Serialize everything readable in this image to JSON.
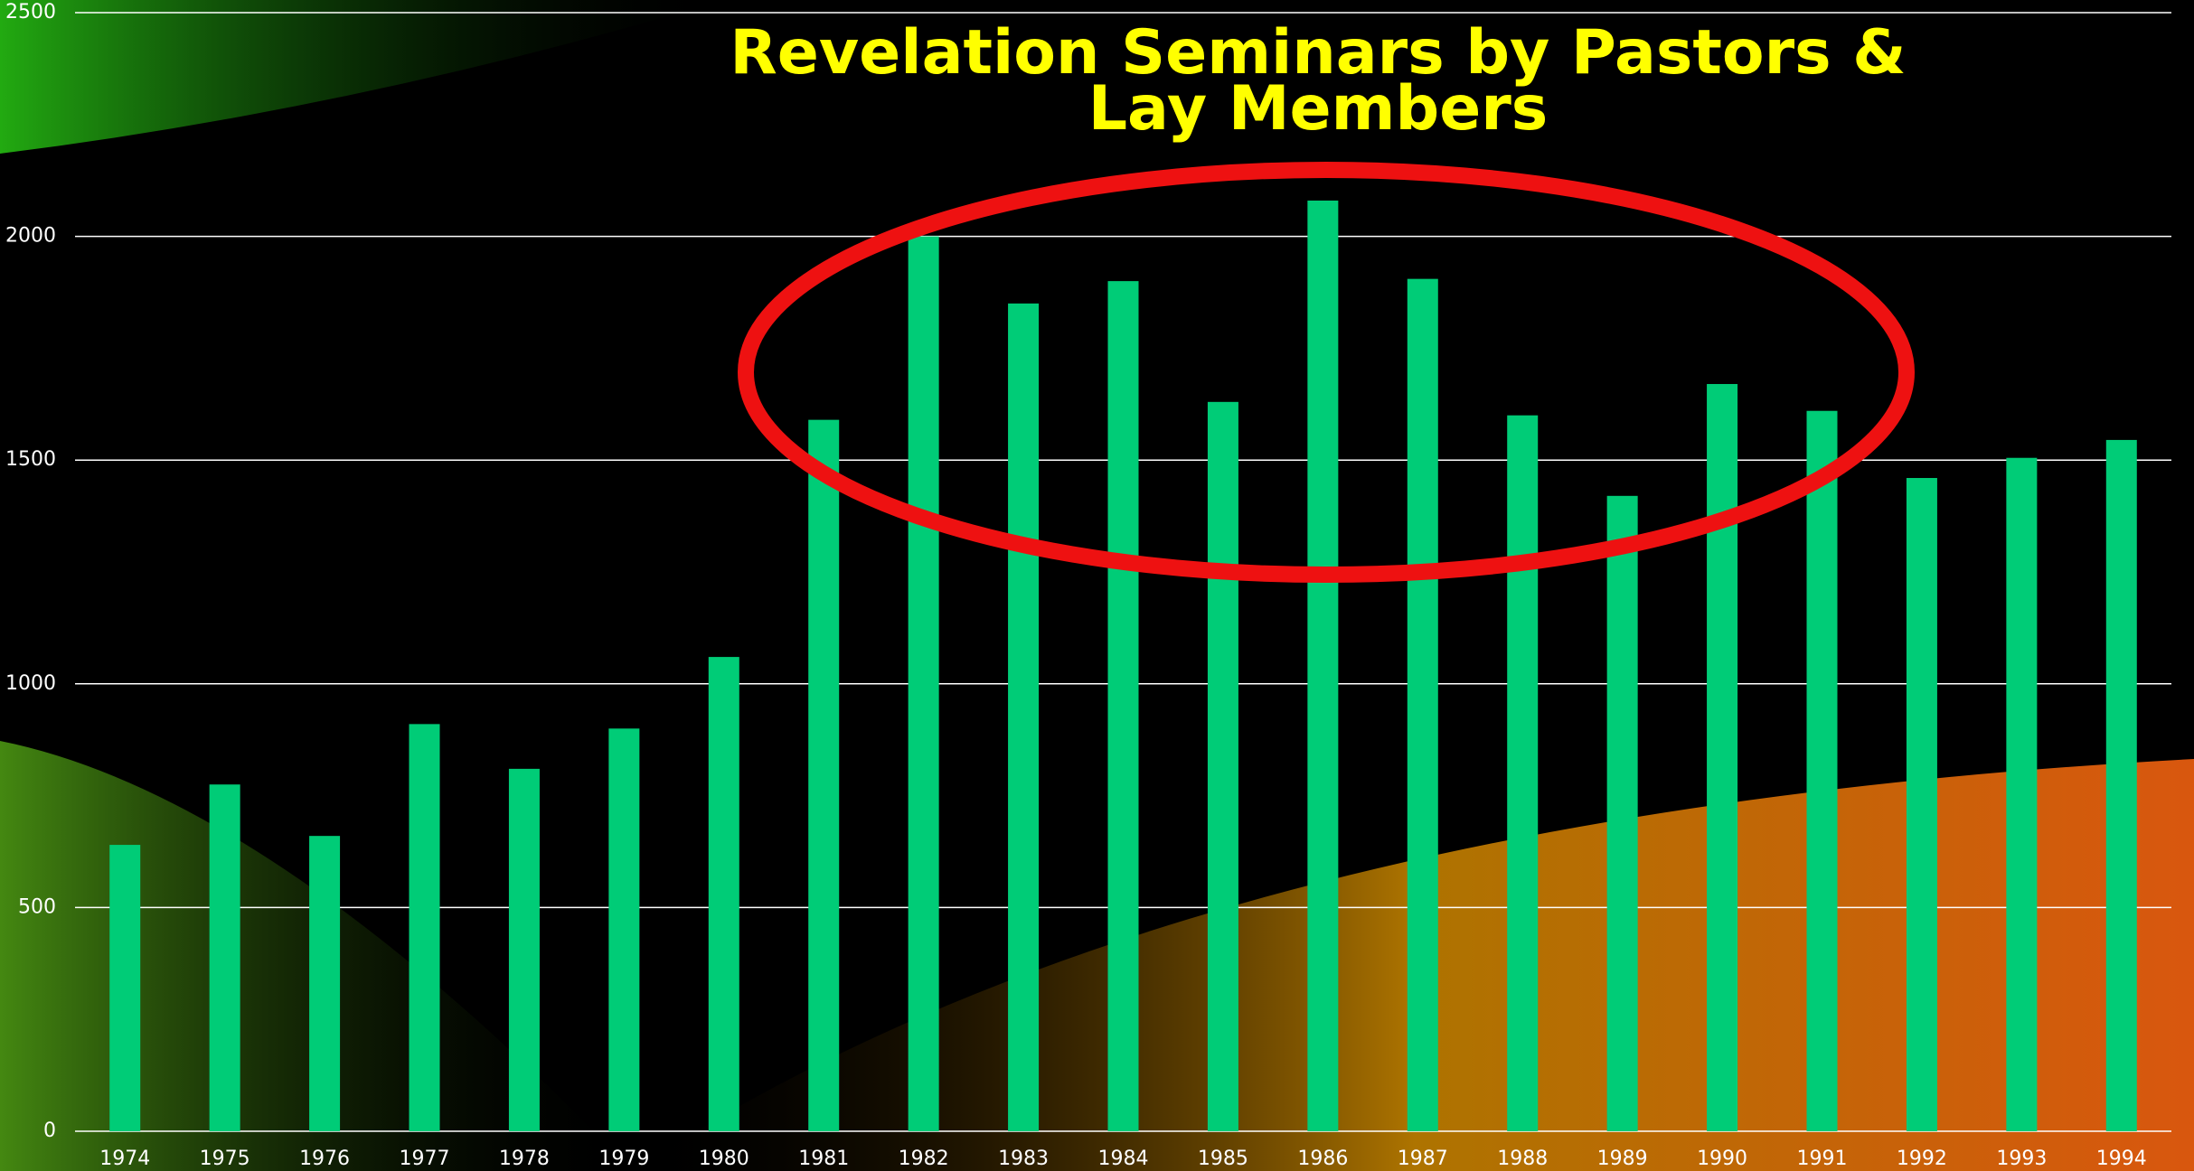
{
  "chart_data": {
    "type": "bar",
    "title": "Revelation Seminars by Pastors & Lay Members",
    "categories": [
      "1974",
      "1975",
      "1976",
      "1977",
      "1978",
      "1979",
      "1980",
      "1981",
      "1982",
      "1983",
      "1984",
      "1985",
      "1986",
      "1987",
      "1988",
      "1989",
      "1990",
      "1991",
      "1992",
      "1993",
      "1994"
    ],
    "values": [
      640,
      775,
      660,
      910,
      810,
      900,
      1060,
      1590,
      2000,
      1850,
      1900,
      1630,
      2080,
      1905,
      1600,
      1420,
      1670,
      1610,
      1460,
      1505,
      1545
    ],
    "color": "#00cc77",
    "ylim": [
      0,
      2500
    ],
    "yticks": [
      0,
      500,
      1000,
      1500,
      2000,
      2500
    ],
    "grid": true
  }
}
